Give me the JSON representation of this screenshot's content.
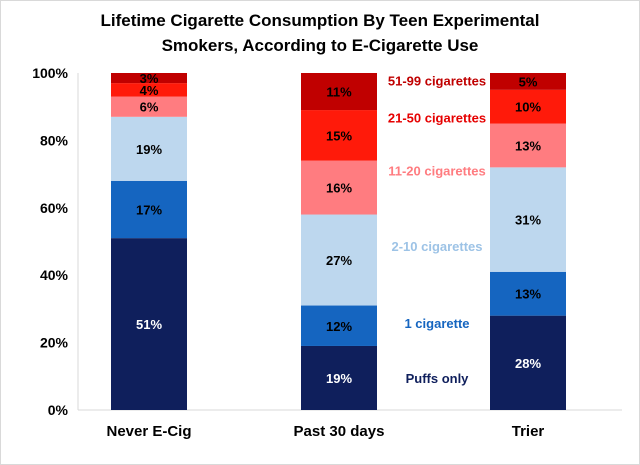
{
  "chart_data": {
    "type": "bar",
    "stacked": true,
    "percent_stacked": true,
    "title_lines": [
      "Lifetime Cigarette Consumption By Teen Experimental",
      "Smokers, According to E-Cigarette Use"
    ],
    "categories": [
      "Never E-Cig",
      "Past 30 days",
      "Trier"
    ],
    "ylim": [
      0,
      100
    ],
    "yticks": [
      0,
      20,
      40,
      60,
      80,
      100
    ],
    "ytick_labels": [
      "0%",
      "20%",
      "40%",
      "60%",
      "80%",
      "100%"
    ],
    "grid": false,
    "legend": "inline labels to the right of the middle bar",
    "series": [
      {
        "name": "Puffs only",
        "values": [
          51,
          19,
          28
        ],
        "labels": [
          "51%",
          "19%",
          "28%"
        ],
        "color": "#0f1f5c",
        "label_color": "#0f1f5c",
        "text_color": "#ffffff"
      },
      {
        "name": "1 cigarette",
        "values": [
          17,
          12,
          13
        ],
        "labels": [
          "17%",
          "12%",
          "13%"
        ],
        "color": "#1565c0",
        "label_color": "#1565c0",
        "text_color": "#000000"
      },
      {
        "name": "2-10 cigarettes",
        "values": [
          19,
          27,
          31
        ],
        "labels": [
          "19%",
          "27%",
          "31%"
        ],
        "color": "#bdd7ee",
        "label_color": "#9dc3e6",
        "text_color": "#000000"
      },
      {
        "name": "11-20 cigarettes",
        "values": [
          6,
          16,
          13
        ],
        "labels": [
          "6%",
          "16%",
          "13%"
        ],
        "color": "#ff7c80",
        "label_color": "#ff7c80",
        "text_color": "#000000"
      },
      {
        "name": "21-50 cigarettes",
        "values": [
          4,
          15,
          10
        ],
        "labels": [
          "4%",
          "15%",
          "10%"
        ],
        "color": "#ff1a0a",
        "label_color": "#e60000",
        "text_color": "#000000"
      },
      {
        "name": "51-99 cigarettes",
        "values": [
          3,
          11,
          5
        ],
        "labels": [
          "3%",
          "11%",
          "5%"
        ],
        "color": "#c00000",
        "label_color": "#c00000",
        "text_color": "#000000"
      }
    ]
  }
}
